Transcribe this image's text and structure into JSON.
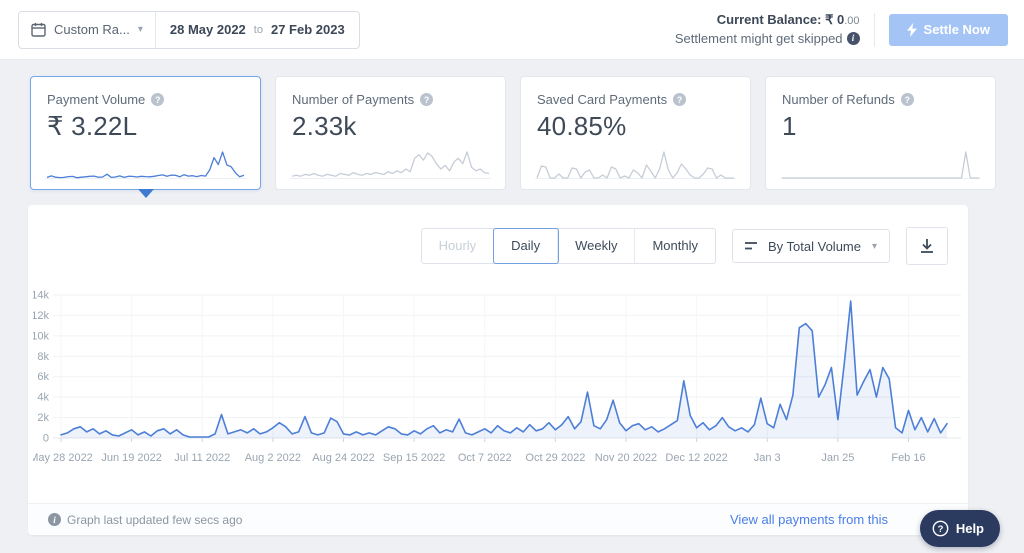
{
  "topbar": {
    "range_label": "Custom Ra...",
    "date_from": "28 May 2022",
    "to_word": "to",
    "date_to": "27 Feb 2023",
    "balance_label": "Current Balance:",
    "balance_main": "₹ 0",
    "balance_decimals": ".00",
    "settlement_note": "Settlement might get skipped",
    "settle_button": "Settle Now"
  },
  "cards": [
    {
      "label": "Payment Volume",
      "value": "₹ 3.22L",
      "selected": true
    },
    {
      "label": "Number of Payments",
      "value": "2.33k",
      "selected": false
    },
    {
      "label": "Saved Card Payments",
      "value": "40.85%",
      "selected": false
    },
    {
      "label": "Number of Refunds",
      "value": "1",
      "selected": false
    }
  ],
  "controls": {
    "tabs": [
      {
        "label": "Hourly",
        "state": "disabled"
      },
      {
        "label": "Daily",
        "state": "selected"
      },
      {
        "label": "Weekly",
        "state": "normal"
      },
      {
        "label": "Monthly",
        "state": "normal"
      }
    ],
    "sort_label": "By Total Volume"
  },
  "chart_data": {
    "type": "area",
    "title": "",
    "xlabel": "",
    "ylabel": "",
    "unit_note": "y values are payment volume in thousands of rupees (k), one point per 2 days",
    "x_start_date": "2022-05-28",
    "x_end_date": "2023-02-27",
    "x_interval_days": 2,
    "total_days": 276,
    "ylim_k": [
      0,
      14
    ],
    "ytick_labels": [
      "14k",
      "12k",
      "10k",
      "8k",
      "6k",
      "4k",
      "2k",
      "0"
    ],
    "xticks": [
      {
        "label": "May 28 2022",
        "day": 0
      },
      {
        "label": "Jun 19 2022",
        "day": 22
      },
      {
        "label": "Jul 11 2022",
        "day": 44
      },
      {
        "label": "Aug 2 2022",
        "day": 66
      },
      {
        "label": "Aug 24 2022",
        "day": 88
      },
      {
        "label": "Sep 15 2022",
        "day": 110
      },
      {
        "label": "Oct 7 2022",
        "day": 132
      },
      {
        "label": "Oct 29 2022",
        "day": 154
      },
      {
        "label": "Nov 20 2022",
        "day": 176
      },
      {
        "label": "Dec 12 2022",
        "day": 198
      },
      {
        "label": "Jan 3",
        "day": 220
      },
      {
        "label": "Jan 25",
        "day": 242
      },
      {
        "label": "Feb 16",
        "day": 264
      }
    ],
    "values_k": [
      0.3,
      0.5,
      0.9,
      1.1,
      0.6,
      0.9,
      0.4,
      0.7,
      0.3,
      0.2,
      0.5,
      0.8,
      0.3,
      0.6,
      0.2,
      0.7,
      0.9,
      0.4,
      0.8,
      0.3,
      0.1,
      0.1,
      0.1,
      0.1,
      0.4,
      2.3,
      0.4,
      0.6,
      0.8,
      0.5,
      0.9,
      0.4,
      0.6,
      1.0,
      1.5,
      1.1,
      0.4,
      0.6,
      2.1,
      0.5,
      0.3,
      0.5,
      1.95,
      1.6,
      0.4,
      0.3,
      0.6,
      0.3,
      0.5,
      0.3,
      0.7,
      1.1,
      0.9,
      0.4,
      0.3,
      0.7,
      0.4,
      0.9,
      1.2,
      0.5,
      0.8,
      0.6,
      1.85,
      0.5,
      0.3,
      0.6,
      0.9,
      0.5,
      1.2,
      0.7,
      0.5,
      1.0,
      0.6,
      1.3,
      0.7,
      0.9,
      1.5,
      0.8,
      1.3,
      2.1,
      0.9,
      1.6,
      4.5,
      1.2,
      0.9,
      1.8,
      3.7,
      1.5,
      0.7,
      1.2,
      1.4,
      0.8,
      1.1,
      0.6,
      0.9,
      1.3,
      1.7,
      5.6,
      2.2,
      1.0,
      1.5,
      0.8,
      1.2,
      2.0,
      1.1,
      0.7,
      1.0,
      0.6,
      1.3,
      3.9,
      1.4,
      1.0,
      3.3,
      1.8,
      4.2,
      10.8,
      11.2,
      10.5,
      4.0,
      5.2,
      6.9,
      1.8,
      7.3,
      13.4,
      4.2,
      5.5,
      6.7,
      4.0,
      6.9,
      5.8,
      1.0,
      0.5,
      2.7,
      0.8,
      2.0,
      0.6,
      1.9,
      0.5,
      1.4
    ],
    "line_color": "#4d7fd8",
    "fill_color": "rgba(77,127,216,0.10)",
    "grid": true,
    "legend": "none"
  },
  "sparklines": {
    "volume_note": "payment-volume sparkline mirrors chart_data.values_k",
    "volume_color": "#4d7fd8",
    "gray_color": "#c6cdd7",
    "payments_count_k": [
      0.2,
      0.3,
      0.2,
      0.4,
      0.3,
      0.5,
      0.3,
      0.2,
      0.4,
      0.3,
      0.2,
      0.5,
      0.4,
      0.3,
      0.6,
      0.4,
      0.3,
      0.5,
      0.4,
      0.6,
      0.5,
      0.4,
      0.7,
      0.5,
      0.8,
      0.6,
      1.0,
      0.7,
      2.2,
      2.6,
      2.0,
      2.8,
      2.4,
      1.6,
      1.0,
      1.4,
      0.8,
      1.8,
      2.2,
      1.6,
      2.9,
      1.2,
      0.8,
      1.0,
      0.6,
      0.5
    ],
    "saved_card": [
      0,
      1.2,
      1.1,
      0,
      0,
      0.4,
      0,
      0,
      1.0,
      0.9,
      0,
      0.6,
      0.8,
      0,
      0,
      0.3,
      0,
      1.1,
      0.9,
      0,
      0.2,
      0,
      0.8,
      0.5,
      0,
      1.3,
      0.7,
      0,
      0.9,
      2.6,
      0.8,
      0,
      0.5,
      1.4,
      0.9,
      0.3,
      0,
      0,
      0.4,
      1.0,
      0.9,
      0,
      0.3,
      0,
      0,
      0
    ],
    "refunds": [
      0,
      0,
      0,
      0,
      0,
      0,
      0,
      0,
      0,
      0,
      0,
      0,
      0,
      0,
      0,
      0,
      0,
      0,
      0,
      0,
      0,
      0,
      0,
      0,
      0,
      0,
      0,
      0,
      0,
      0,
      0,
      0,
      0,
      0,
      0,
      0,
      0,
      0,
      0,
      0,
      0,
      0,
      1,
      0,
      0,
      0
    ]
  },
  "footer": {
    "updated": "Graph last updated few secs ago",
    "link": "View all payments from this"
  },
  "help": {
    "label": "Help"
  },
  "colors": {
    "accent_blue": "#4d7fd8",
    "settle_button_bg": "#a5c4f6",
    "selected_border": "#78a5e8",
    "link_blue": "#4a7ee8",
    "help_bg": "#2b3a5f",
    "page_bg": "#eef0f4"
  }
}
